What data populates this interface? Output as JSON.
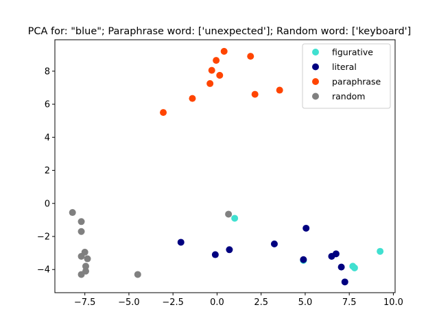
{
  "chart_data": {
    "type": "scatter",
    "title": "PCA for: \"blue\"; Paraphrase word: ['unexpected']; Random word: ['keyboard']",
    "xlabel": "",
    "ylabel": "",
    "xlim": [
      -9.2,
      10.1
    ],
    "ylim": [
      -5.4,
      9.9
    ],
    "xticks": [
      -7.5,
      -5.0,
      -2.5,
      0.0,
      2.5,
      5.0,
      7.5,
      10.0
    ],
    "xtick_labels": [
      "−7.5",
      "−5.0",
      "−2.5",
      "0.0",
      "2.5",
      "5.0",
      "7.5",
      "10.0"
    ],
    "yticks": [
      -4,
      -2,
      0,
      2,
      4,
      6,
      8
    ],
    "ytick_labels": [
      "−4",
      "−2",
      "0",
      "2",
      "4",
      "6",
      "8"
    ],
    "grid": false,
    "legend_position": "top-right",
    "series": [
      {
        "name": "figurative",
        "color": "#40e0d0",
        "points": [
          [
            1.0,
            -0.9
          ],
          [
            4.9,
            -3.45
          ],
          [
            7.7,
            -3.8
          ],
          [
            7.8,
            -3.9
          ],
          [
            9.25,
            -2.9
          ]
        ]
      },
      {
        "name": "literal",
        "color": "#000080",
        "points": [
          [
            -2.05,
            -2.35
          ],
          [
            -0.1,
            -3.1
          ],
          [
            0.7,
            -2.8
          ],
          [
            3.25,
            -2.45
          ],
          [
            5.05,
            -1.5
          ],
          [
            4.9,
            -3.4
          ],
          [
            6.5,
            -3.2
          ],
          [
            6.75,
            -3.05
          ],
          [
            7.05,
            -3.85
          ],
          [
            7.25,
            -4.75
          ]
        ]
      },
      {
        "name": "paraphrase",
        "color": "#ff4500",
        "points": [
          [
            -3.05,
            5.5
          ],
          [
            -1.4,
            6.35
          ],
          [
            -0.4,
            7.25
          ],
          [
            -0.3,
            8.05
          ],
          [
            -0.05,
            8.65
          ],
          [
            0.15,
            7.75
          ],
          [
            0.4,
            9.2
          ],
          [
            1.9,
            8.9
          ],
          [
            2.15,
            6.6
          ],
          [
            3.55,
            6.85
          ]
        ]
      },
      {
        "name": "random",
        "color": "#808080",
        "points": [
          [
            -8.2,
            -0.55
          ],
          [
            -7.7,
            -1.1
          ],
          [
            -7.7,
            -1.7
          ],
          [
            -7.5,
            -2.95
          ],
          [
            -7.7,
            -3.2
          ],
          [
            -7.35,
            -3.35
          ],
          [
            -7.45,
            -3.8
          ],
          [
            -7.45,
            -4.1
          ],
          [
            -7.7,
            -4.3
          ],
          [
            -4.5,
            -4.3
          ],
          [
            0.65,
            -0.65
          ]
        ]
      }
    ]
  }
}
